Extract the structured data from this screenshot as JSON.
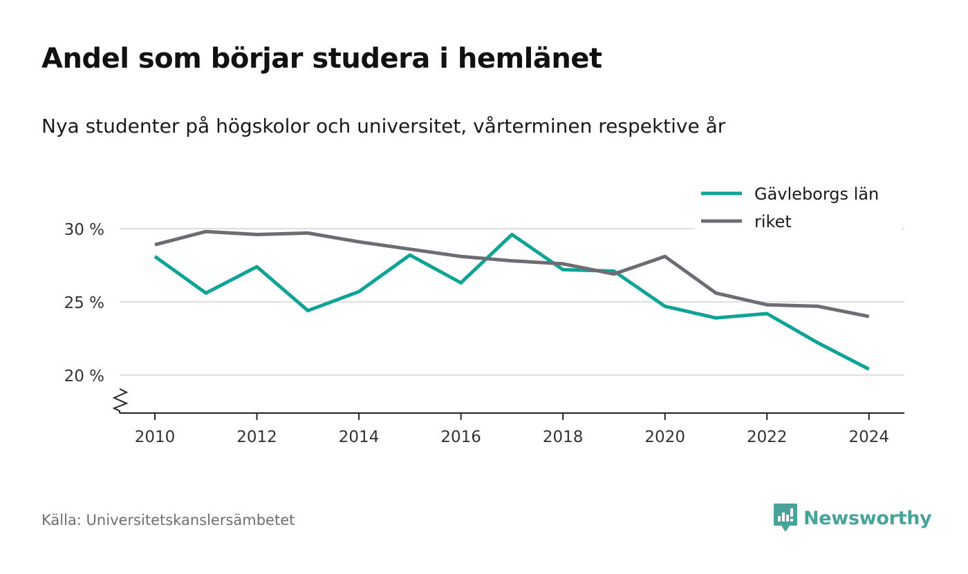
{
  "title": "Andel som börjar studera i hemlänet",
  "subtitle": "Nya studenter på högskolor och universitet, vårterminen respektive år",
  "source": "Källa: Universitetskanslersämbetet",
  "brand": {
    "name": "Newsworthy",
    "color": "#4aa39a",
    "icon": "newsworthy-logo-icon"
  },
  "chart_data": {
    "type": "line",
    "x": [
      2010,
      2011,
      2012,
      2013,
      2014,
      2015,
      2016,
      2017,
      2018,
      2019,
      2020,
      2021,
      2022,
      2023,
      2024
    ],
    "xticks": [
      2010,
      2012,
      2014,
      2016,
      2018,
      2020,
      2022,
      2024
    ],
    "xtick_labels": [
      "2010",
      "2012",
      "2014",
      "2016",
      "2018",
      "2020",
      "2022",
      "2024"
    ],
    "xlim": [
      2009.4,
      2024.7
    ],
    "yticks": [
      20,
      25,
      30
    ],
    "ytick_labels": [
      "20 %",
      "25 %",
      "30 %"
    ],
    "ylim": [
      17.4,
      30.5
    ],
    "grid": true,
    "axis_break": true,
    "legend_position": "top-right",
    "series": [
      {
        "name": "Gävleborgs län",
        "color": "#0fa297",
        "values": [
          28.1,
          25.6,
          27.4,
          24.4,
          25.7,
          28.2,
          26.3,
          29.6,
          27.2,
          27.1,
          24.7,
          23.9,
          24.2,
          22.2,
          20.4
        ]
      },
      {
        "name": "riket",
        "color": "#6d6b73",
        "values": [
          28.9,
          29.8,
          29.6,
          29.7,
          29.1,
          28.6,
          28.1,
          27.8,
          27.6,
          26.9,
          28.1,
          25.6,
          24.8,
          24.7,
          24.0
        ]
      }
    ]
  }
}
